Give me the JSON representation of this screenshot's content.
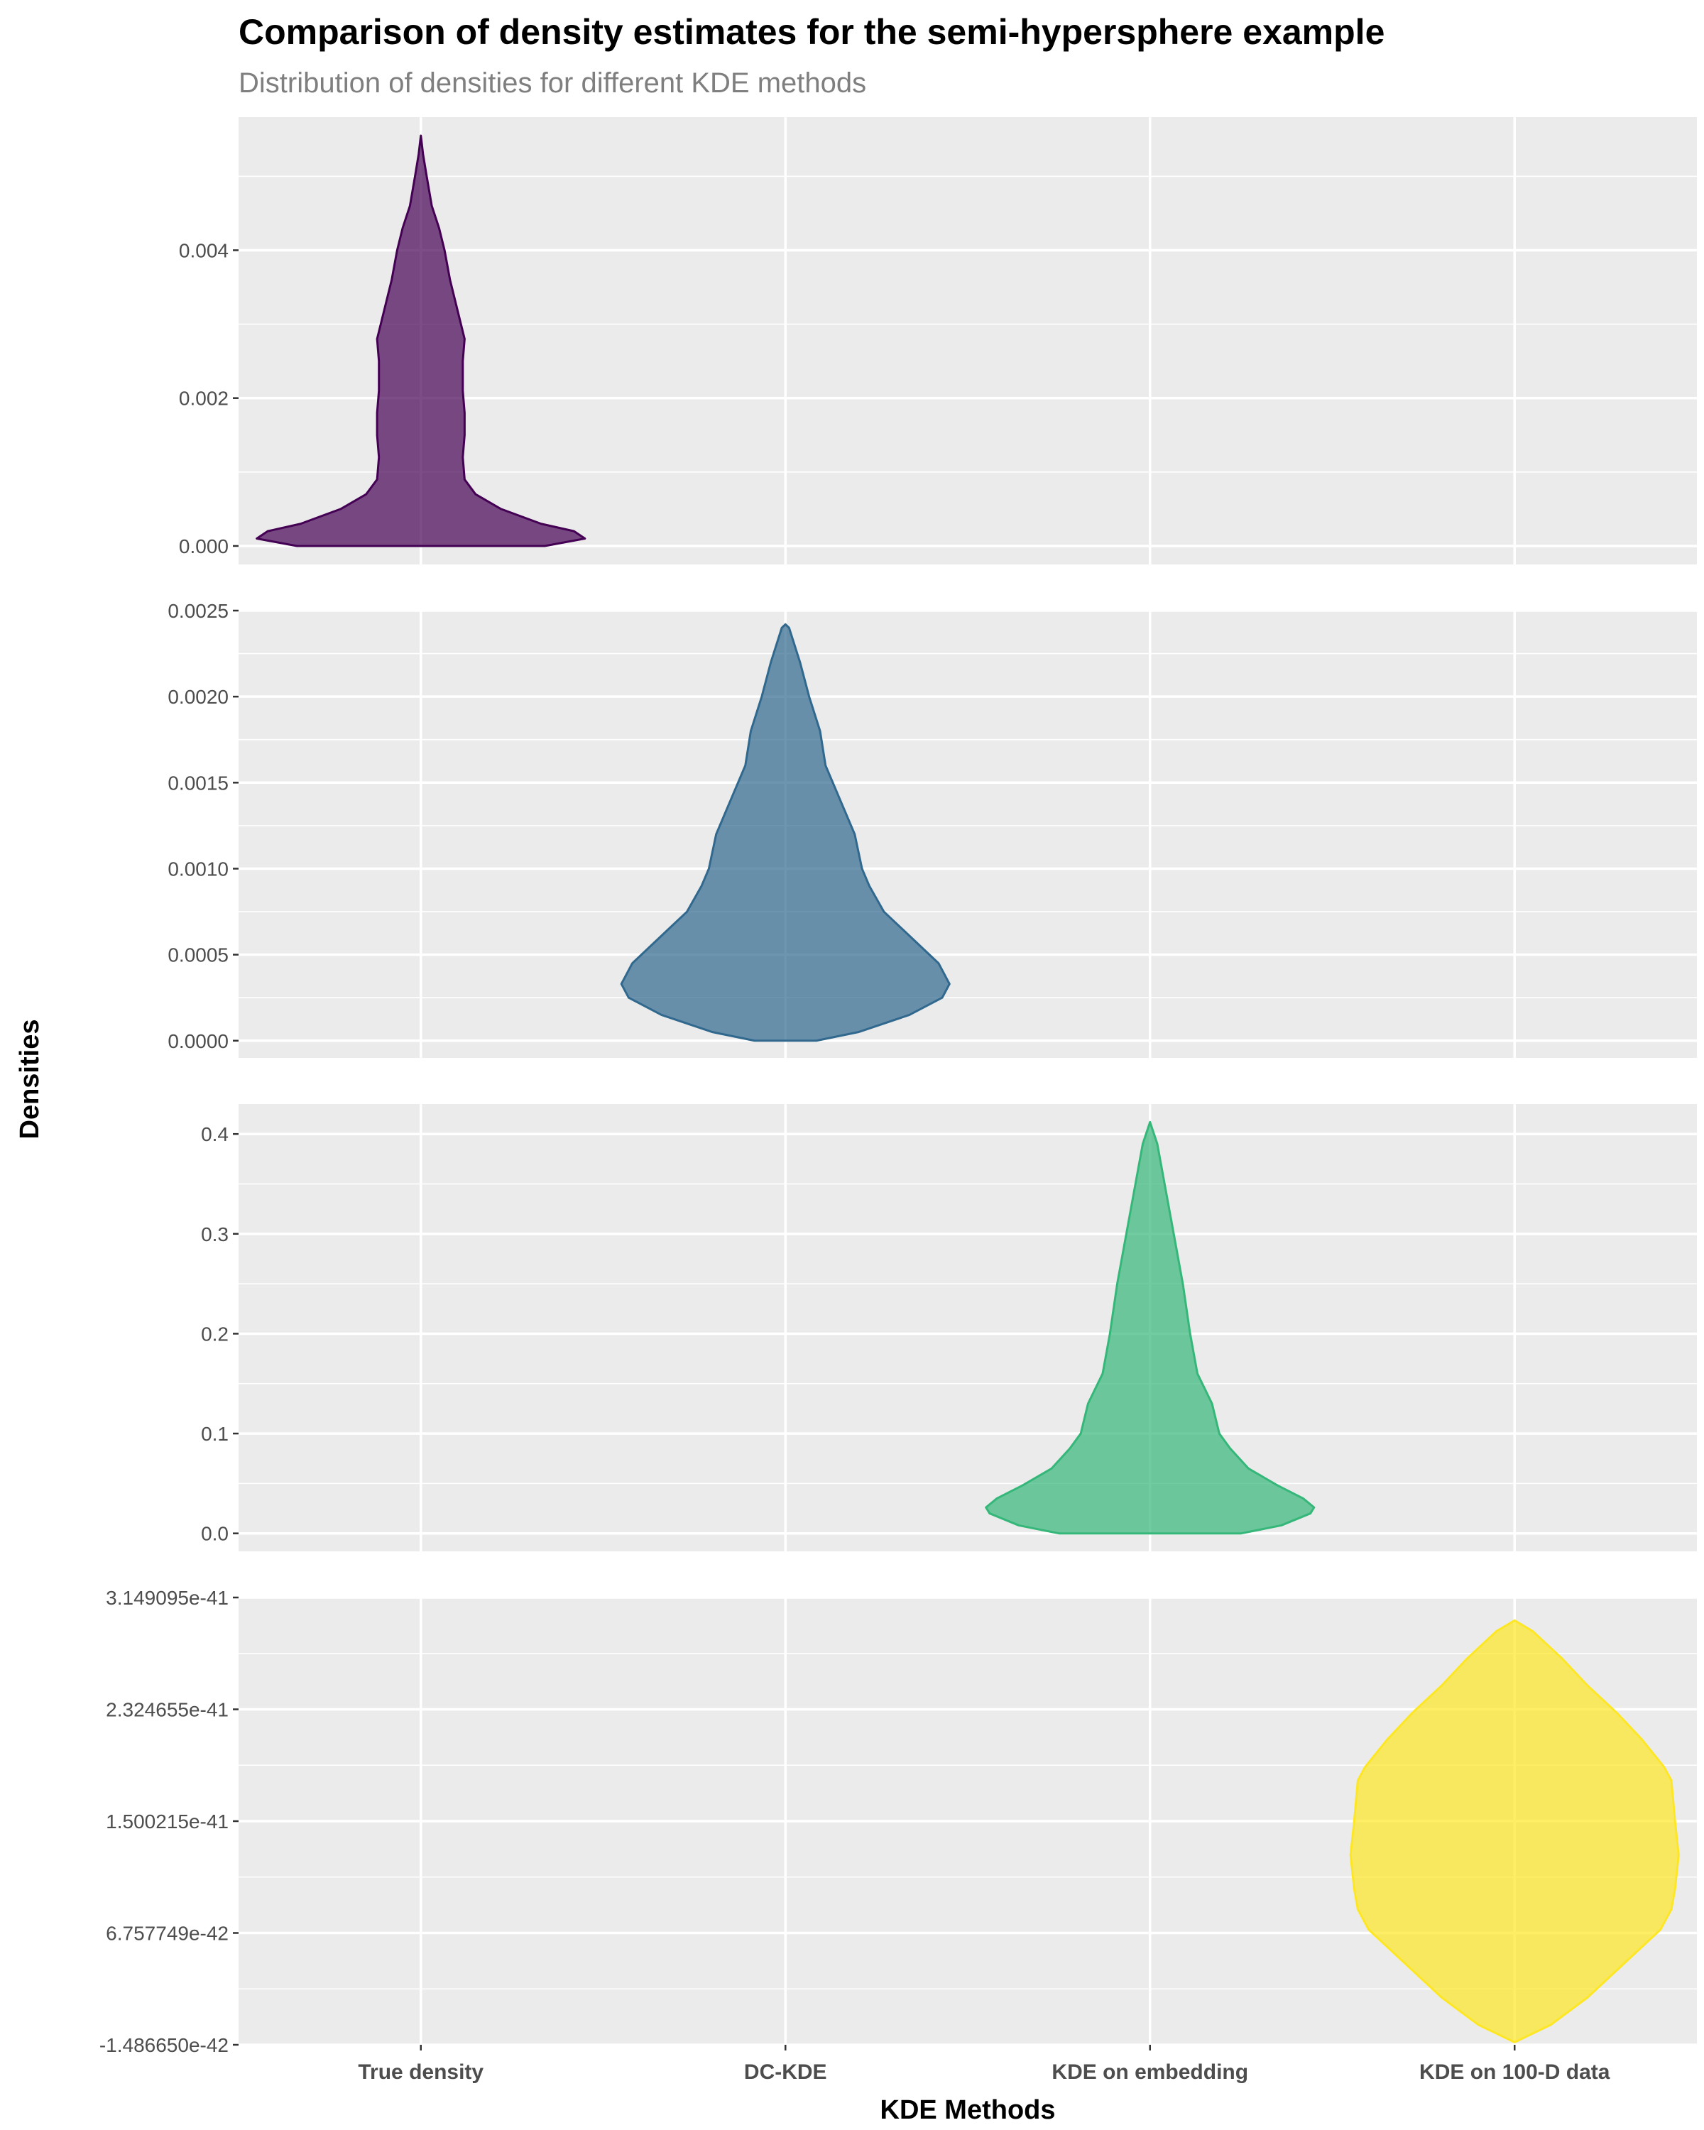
{
  "chart_data": {
    "type": "violin",
    "title": "Comparison of density estimates for the semi-hypersphere example",
    "subtitle": "Distribution of densities for different KDE methods",
    "xlabel": "KDE Methods",
    "ylabel": "Densities",
    "categories": [
      "True density",
      "DC-KDE",
      "KDE on embedding",
      "KDE on 100-D data"
    ],
    "grid": true,
    "legend": "none",
    "panels": [
      {
        "category": "True density",
        "color": "#440154",
        "fill": "#440154",
        "ylim": [
          -0.00025,
          0.0058
        ],
        "yticks": [
          0,
          0.002,
          0.004
        ],
        "ytick_labels": [
          "0.000",
          "0.002",
          "0.004"
        ],
        "ymin": 0.0,
        "ymax": 0.00555,
        "profile": [
          [
            0.0,
            0.34
          ],
          [
            0.0001,
            0.45
          ],
          [
            0.0002,
            0.42
          ],
          [
            0.0003,
            0.33
          ],
          [
            0.0005,
            0.22
          ],
          [
            0.0007,
            0.15
          ],
          [
            0.0009,
            0.12
          ],
          [
            0.0012,
            0.115
          ],
          [
            0.0015,
            0.12
          ],
          [
            0.0018,
            0.12
          ],
          [
            0.0021,
            0.115
          ],
          [
            0.0025,
            0.115
          ],
          [
            0.0028,
            0.12
          ],
          [
            0.003,
            0.11
          ],
          [
            0.0033,
            0.095
          ],
          [
            0.0036,
            0.08
          ],
          [
            0.004,
            0.065
          ],
          [
            0.0043,
            0.05
          ],
          [
            0.0046,
            0.03
          ],
          [
            0.005,
            0.016
          ],
          [
            0.0053,
            0.006
          ],
          [
            0.00555,
            0.0
          ]
        ]
      },
      {
        "category": "DC-KDE",
        "color": "#31688e",
        "fill": "#31688e",
        "ylim": [
          -0.0001,
          0.0025
        ],
        "yticks": [
          0,
          0.0005,
          0.001,
          0.0015,
          0.002,
          0.0025
        ],
        "ytick_labels": [
          "0.0000",
          "0.0005",
          "0.0010",
          "0.0015",
          "0.0020",
          "0.0025"
        ],
        "ymin": 0.0,
        "ymax": 0.00242,
        "profile": [
          [
            0.0,
            0.085
          ],
          [
            5e-05,
            0.2
          ],
          [
            0.00015,
            0.34
          ],
          [
            0.00025,
            0.43
          ],
          [
            0.00033,
            0.45
          ],
          [
            0.00045,
            0.42
          ],
          [
            0.00055,
            0.37
          ],
          [
            0.00065,
            0.32
          ],
          [
            0.00075,
            0.27
          ],
          [
            0.0009,
            0.23
          ],
          [
            0.001,
            0.21
          ],
          [
            0.0012,
            0.19
          ],
          [
            0.0014,
            0.15
          ],
          [
            0.0015,
            0.13
          ],
          [
            0.0016,
            0.11
          ],
          [
            0.0018,
            0.095
          ],
          [
            0.002,
            0.065
          ],
          [
            0.0022,
            0.04
          ],
          [
            0.0024,
            0.01
          ],
          [
            0.00242,
            0.0
          ]
        ]
      },
      {
        "category": "KDE on embedding",
        "color": "#35b779",
        "fill": "#35b779",
        "ylim": [
          -0.018,
          0.43
        ],
        "yticks": [
          0,
          0.1,
          0.2,
          0.3,
          0.4
        ],
        "ytick_labels": [
          "0.0",
          "0.1",
          "0.2",
          "0.3",
          "0.4"
        ],
        "ymin": 0.0,
        "ymax": 0.412,
        "profile": [
          [
            0.0,
            0.25
          ],
          [
            0.008,
            0.36
          ],
          [
            0.02,
            0.44
          ],
          [
            0.026,
            0.45
          ],
          [
            0.035,
            0.42
          ],
          [
            0.048,
            0.35
          ],
          [
            0.065,
            0.27
          ],
          [
            0.085,
            0.22
          ],
          [
            0.1,
            0.19
          ],
          [
            0.13,
            0.17
          ],
          [
            0.16,
            0.13
          ],
          [
            0.2,
            0.11
          ],
          [
            0.25,
            0.09
          ],
          [
            0.3,
            0.065
          ],
          [
            0.35,
            0.04
          ],
          [
            0.39,
            0.02
          ],
          [
            0.412,
            0.0
          ]
        ]
      },
      {
        "category": "KDE on 100-D data",
        "color": "#fde725",
        "fill": "#fde725",
        "ylim": [
          -1.48665e-42,
          3.149095e-41
        ],
        "yticks": [
          -1.48665e-42,
          6.757749e-42,
          1.500215e-41,
          2.324655e-41,
          3.149095e-41
        ],
        "ytick_labels": [
          "-1.486650e-42",
          "6.757749e-42",
          "1.500215e-41",
          "2.324655e-41",
          "3.149095e-41"
        ],
        "ymin": -1.3e-42,
        "ymax": 2.98e-41,
        "profile": [
          [
            -1.3e-42,
            0.0
          ],
          [
            0.0,
            0.1
          ],
          [
            2e-42,
            0.2
          ],
          [
            4.5e-42,
            0.3
          ],
          [
            7e-42,
            0.4
          ],
          [
            8.5e-42,
            0.43
          ],
          [
            1e-41,
            0.44
          ],
          [
            1.25e-41,
            0.45
          ],
          [
            1.5e-41,
            0.44
          ],
          [
            1.8e-41,
            0.43
          ],
          [
            1.9e-41,
            0.41
          ],
          [
            2.1e-41,
            0.35
          ],
          [
            2.3e-41,
            0.28
          ],
          [
            2.5e-41,
            0.2
          ],
          [
            2.7e-41,
            0.13
          ],
          [
            2.9e-41,
            0.05
          ],
          [
            2.98e-41,
            0.0
          ]
        ]
      }
    ]
  }
}
